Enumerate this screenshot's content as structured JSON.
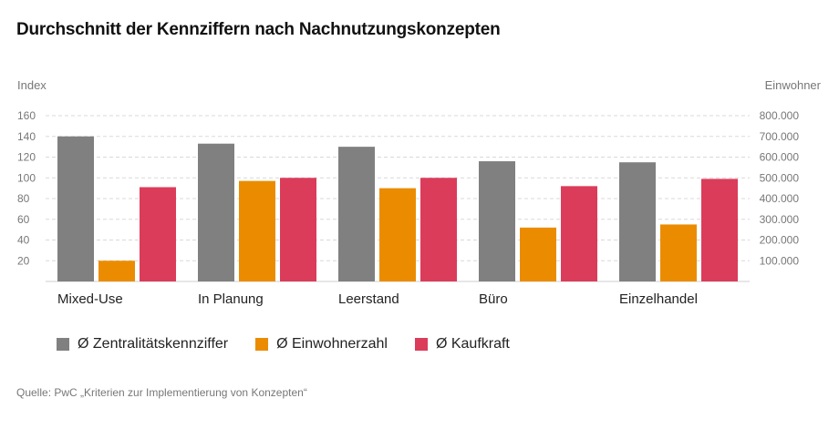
{
  "title": "Durchschnitt der Kennziffern nach Nachnutzungskonzepten",
  "source": "Quelle: PwC „Kriterien zur Implementierung von Konzepten“",
  "chart_data": {
    "type": "bar",
    "left_axis_label": "Index",
    "right_axis_label": "Einwohner",
    "left_ticks": [
      "20",
      "40",
      "60",
      "80",
      "100",
      "120",
      "140",
      "160"
    ],
    "right_ticks": [
      "100.000",
      "200.000",
      "300.000",
      "400.000",
      "500.000",
      "600.000",
      "700.000",
      "800.000"
    ],
    "ylim": [
      0,
      160
    ],
    "ylim_right": [
      0,
      800000
    ],
    "grid": true,
    "legend_position": "bottom-left",
    "categories": [
      "Mixed-Use",
      "In Planung",
      "Leerstand",
      "Büro",
      "Einzelhandel"
    ],
    "series": [
      {
        "name": "Ø Zentralitätskennziffer",
        "axis": "left",
        "color": "#808080",
        "values": [
          140,
          133,
          130,
          116,
          115
        ]
      },
      {
        "name": "Ø Einwohnerzahl",
        "axis": "right",
        "color": "#eb8c00",
        "values": [
          100000,
          485000,
          450000,
          260000,
          275000
        ]
      },
      {
        "name": "Ø Kaufkraft",
        "axis": "left",
        "color": "#db3c5a",
        "values": [
          91,
          100,
          100,
          92,
          99
        ]
      }
    ]
  }
}
